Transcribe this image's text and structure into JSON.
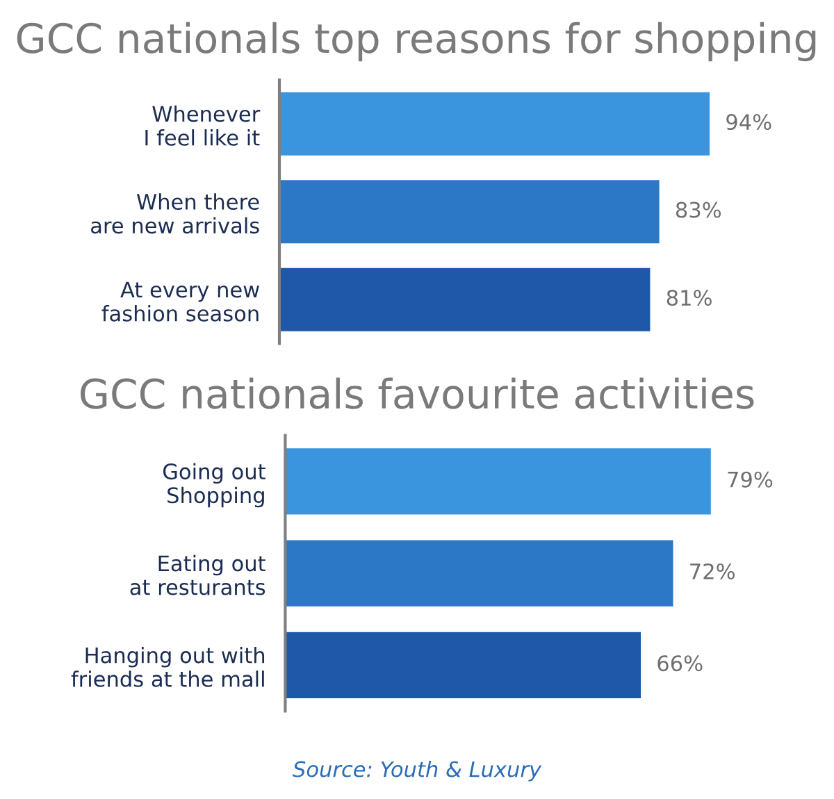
{
  "chart_data": [
    {
      "type": "bar",
      "orientation": "horizontal",
      "title": "GCC nationals top reasons for shopping",
      "categories": [
        "Whenever\nI feel like it",
        "When there\nare new arrivals",
        "At every new\nfashion season"
      ],
      "values": [
        94,
        83,
        81
      ],
      "colors": [
        "#3a95de",
        "#2c78c6",
        "#1f58a8"
      ],
      "value_labels": [
        "94%",
        "83%",
        "81%"
      ],
      "tick_labels": "y",
      "grid": false,
      "legend": false
    },
    {
      "type": "bar",
      "orientation": "horizontal",
      "title": "GCC nationals favourite activities",
      "categories": [
        "Going out\nShopping",
        "Eating out\nat resturants",
        "Hanging out with\nfriends at the mall"
      ],
      "values": [
        79,
        72,
        66
      ],
      "colors": [
        "#3a95de",
        "#2c78c6",
        "#1f58a8"
      ],
      "value_labels": [
        "79%",
        "72%",
        "66%"
      ],
      "tick_labels": "y",
      "grid": false,
      "legend": false,
      "annotations": [
        "Source: Youth & Luxury"
      ]
    }
  ]
}
